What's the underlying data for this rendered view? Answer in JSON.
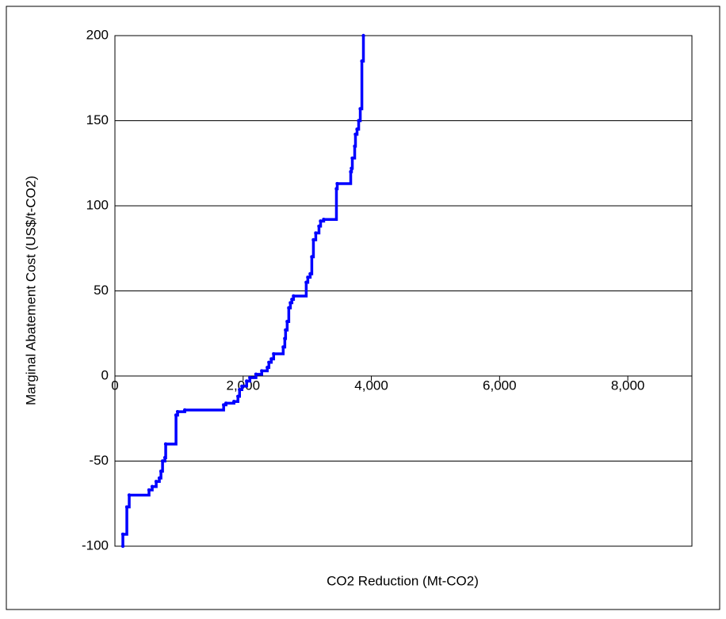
{
  "chart_data": {
    "type": "step",
    "x_label": "CO2 Reduction (Mt-CO2)",
    "y_label": "Marginal Abatement Cost (US$/t-CO2)",
    "xlim": [
      0,
      9000
    ],
    "xticks": [
      0,
      {
        "value": 2000,
        "label": "2,000"
      },
      {
        "value": 4000,
        "label": "4,000"
      },
      {
        "value": 6000,
        "label": "6,000"
      },
      {
        "value": 8000,
        "label": "8,000"
      }
    ],
    "ylim": [
      -100,
      200
    ],
    "yticks": [
      -100,
      -50,
      0,
      50,
      100,
      150,
      200
    ],
    "negative_tick_color": "#ff0000",
    "grid": true,
    "series": [
      {
        "color": "#0000ff",
        "x": [
          124,
          124,
          186,
          223,
          532,
          582,
          644,
          693,
          718,
          743,
          780,
          792,
          953,
          978,
          1090,
          1696,
          1733,
          1857,
          1919,
          1944,
          1981,
          2055,
          2105,
          2200,
          2290,
          2377,
          2402,
          2439,
          2476,
          2625,
          2650,
          2662,
          2687,
          2712,
          2737,
          2761,
          2786,
          2984,
          3009,
          3046,
          3071,
          3096,
          3133,
          3183,
          3208,
          3257,
          3455,
          3468,
          3678,
          3690,
          3703,
          3740,
          3752,
          3777,
          3802,
          3827,
          3852,
          3876
        ],
        "values": [
          -100,
          -93,
          -77,
          -70,
          -67,
          -65,
          -62,
          -60,
          -56,
          -50,
          -48,
          -40,
          -23,
          -21,
          -20,
          -17,
          -16,
          -15,
          -12,
          -8,
          -6,
          -3,
          -1,
          1,
          3,
          5,
          8,
          10,
          13,
          17,
          22,
          27,
          32,
          40,
          43,
          45,
          47,
          55,
          58,
          60,
          70,
          80,
          84,
          88,
          91,
          92,
          110,
          113,
          120,
          122,
          128,
          135,
          142,
          145,
          150,
          157,
          185,
          200
        ]
      }
    ]
  }
}
